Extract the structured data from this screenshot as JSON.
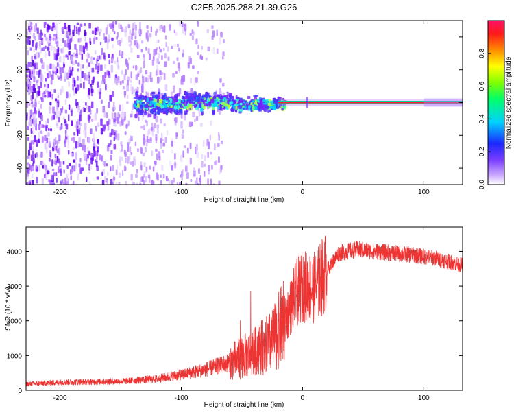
{
  "page_title": "C2E5.2025.288.21.39.G26",
  "colors": {
    "snr_line": "#ee3333",
    "background": "#ffffff",
    "axis": "#000000"
  },
  "chart_data": [
    {
      "type": "heatmap",
      "title": "C2E5.2025.288.21.39.G26",
      "xlabel": "Height of straight line (km)",
      "ylabel": "Frequency (Hz)",
      "xlim": [
        -228,
        132
      ],
      "ylim": [
        -50,
        50
      ],
      "x_ticks": [
        -200,
        -100,
        0,
        100
      ],
      "y_ticks": [
        -40,
        -20,
        0,
        20,
        40
      ],
      "colorbar": {
        "label": "Normalized spectral amplitude",
        "range": [
          0,
          1
        ],
        "ticks": [
          "0.0",
          "0.2",
          "0.4",
          "0.6",
          "0.8"
        ],
        "ticks_values": [
          0.0,
          0.2,
          0.4,
          0.6,
          0.8
        ]
      },
      "features": {
        "noise_region_x": [
          -228,
          -65
        ],
        "spread_signal_x": [
          -140,
          -15
        ],
        "carrier_line_x": [
          -20,
          132
        ],
        "carrier_frequency": 0
      }
    },
    {
      "type": "line",
      "title": "",
      "xlabel": "Height of straight line (km)",
      "ylabel": "SNR (10 * v/v)",
      "xlim": [
        -228,
        132
      ],
      "ylim": [
        0,
        4700
      ],
      "x_ticks": [
        -200,
        -100,
        0,
        100
      ],
      "y_ticks": [
        0,
        1000,
        2000,
        3000,
        4000
      ],
      "series": [
        {
          "name": "SNR",
          "x": [
            -228,
            -200,
            -150,
            -120,
            -100,
            -80,
            -60,
            -40,
            -25,
            -15,
            -5,
            0,
            10,
            20,
            30,
            45,
            60,
            75,
            90,
            110,
            132
          ],
          "y": [
            180,
            230,
            260,
            330,
            450,
            600,
            800,
            1100,
            1400,
            2000,
            2800,
            3000,
            2950,
            3450,
            3950,
            4050,
            4000,
            3950,
            3900,
            3800,
            3600
          ]
        }
      ]
    }
  ]
}
